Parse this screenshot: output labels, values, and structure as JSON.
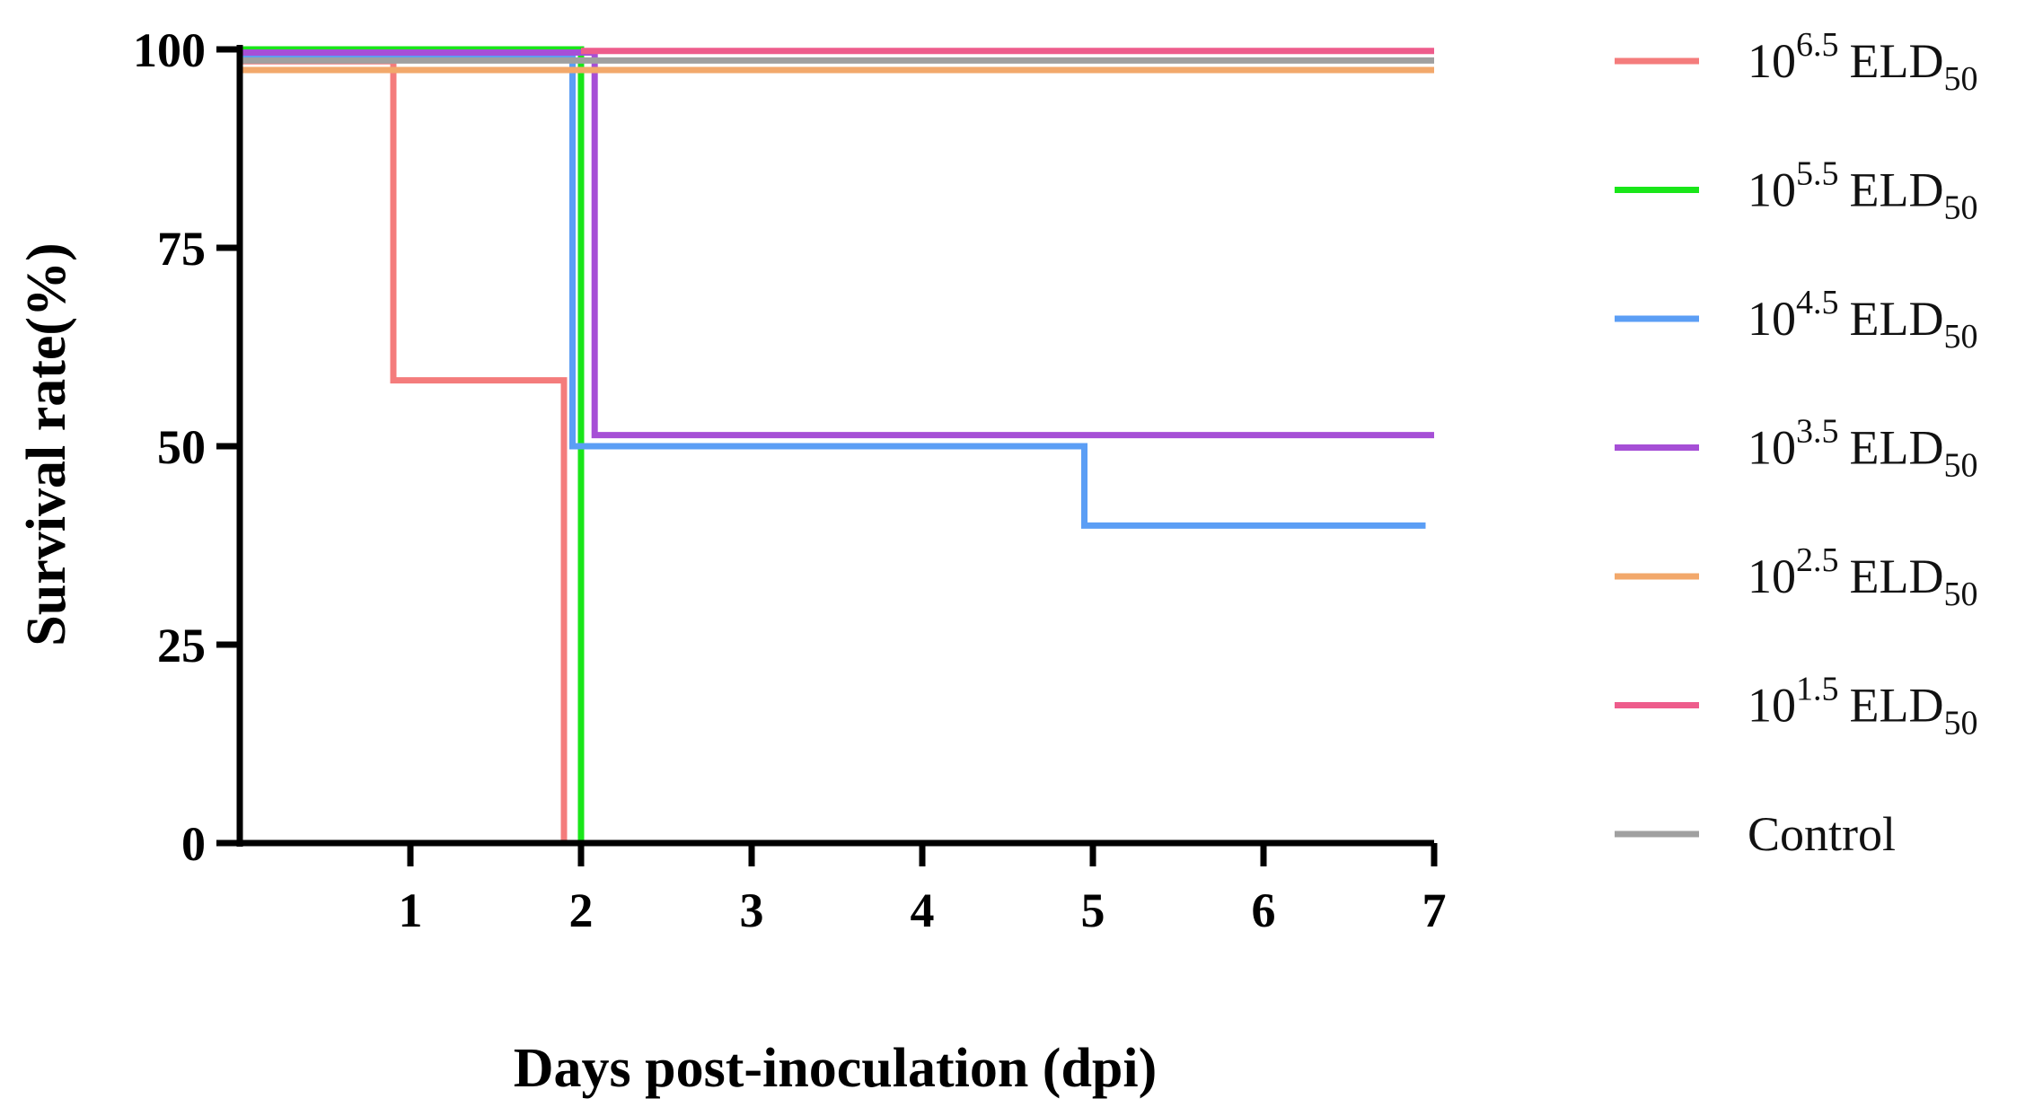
{
  "chart_data": {
    "type": "line",
    "step": true,
    "title": "",
    "xlabel": "Days post-inoculation (dpi)",
    "ylabel": "Survival rate(%)",
    "xlim": [
      0,
      7
    ],
    "ylim": [
      0,
      100
    ],
    "x_ticks": [
      1,
      2,
      3,
      4,
      5,
      6,
      7
    ],
    "y_ticks": [
      0,
      25,
      50,
      75,
      100
    ],
    "grid": false,
    "legend_position": "right",
    "series": [
      {
        "name": "10^6.5 ELD50",
        "base": "10",
        "exponent": "6.5",
        "unit": "ELD",
        "subscript": "50",
        "color": "#F47C7C",
        "points": [
          [
            0,
            98.5
          ],
          [
            0.9,
            98.5
          ],
          [
            0.9,
            58.3
          ],
          [
            1.9,
            58.3
          ],
          [
            1.9,
            0
          ]
        ]
      },
      {
        "name": "10^5.5 ELD50",
        "base": "10",
        "exponent": "5.5",
        "unit": "ELD",
        "subscript": "50",
        "color": "#19E619",
        "points": [
          [
            0,
            100
          ],
          [
            2.0,
            100
          ],
          [
            2.0,
            0
          ]
        ]
      },
      {
        "name": "10^4.5 ELD50",
        "base": "10",
        "exponent": "4.5",
        "unit": "ELD",
        "subscript": "50",
        "color": "#5B9EF5",
        "points": [
          [
            0,
            99.3
          ],
          [
            1.95,
            99.3
          ],
          [
            1.95,
            50
          ],
          [
            4.95,
            50
          ],
          [
            4.95,
            40
          ],
          [
            6.95,
            40
          ]
        ]
      },
      {
        "name": "10^3.5 ELD50",
        "base": "10",
        "exponent": "3.5",
        "unit": "ELD",
        "subscript": "50",
        "color": "#A64FD6",
        "points": [
          [
            0,
            99.6
          ],
          [
            2.08,
            99.6
          ],
          [
            2.08,
            51.4
          ],
          [
            7,
            51.4
          ]
        ]
      },
      {
        "name": "10^2.5 ELD50",
        "base": "10",
        "exponent": "2.5",
        "unit": "ELD",
        "subscript": "50",
        "color": "#F2A86B",
        "points": [
          [
            0,
            97.4
          ],
          [
            7,
            97.4
          ]
        ]
      },
      {
        "name": "10^1.5 ELD50",
        "base": "10",
        "exponent": "1.5",
        "unit": "ELD",
        "subscript": "50",
        "color": "#EE5C8C",
        "points": [
          [
            2.0,
            99.8
          ],
          [
            7,
            99.8
          ]
        ]
      },
      {
        "name": "Control",
        "base": "Control",
        "exponent": "",
        "unit": "",
        "subscript": "",
        "color": "#A0A0A0",
        "points": [
          [
            0,
            98.6
          ],
          [
            7,
            98.6
          ]
        ]
      }
    ]
  }
}
